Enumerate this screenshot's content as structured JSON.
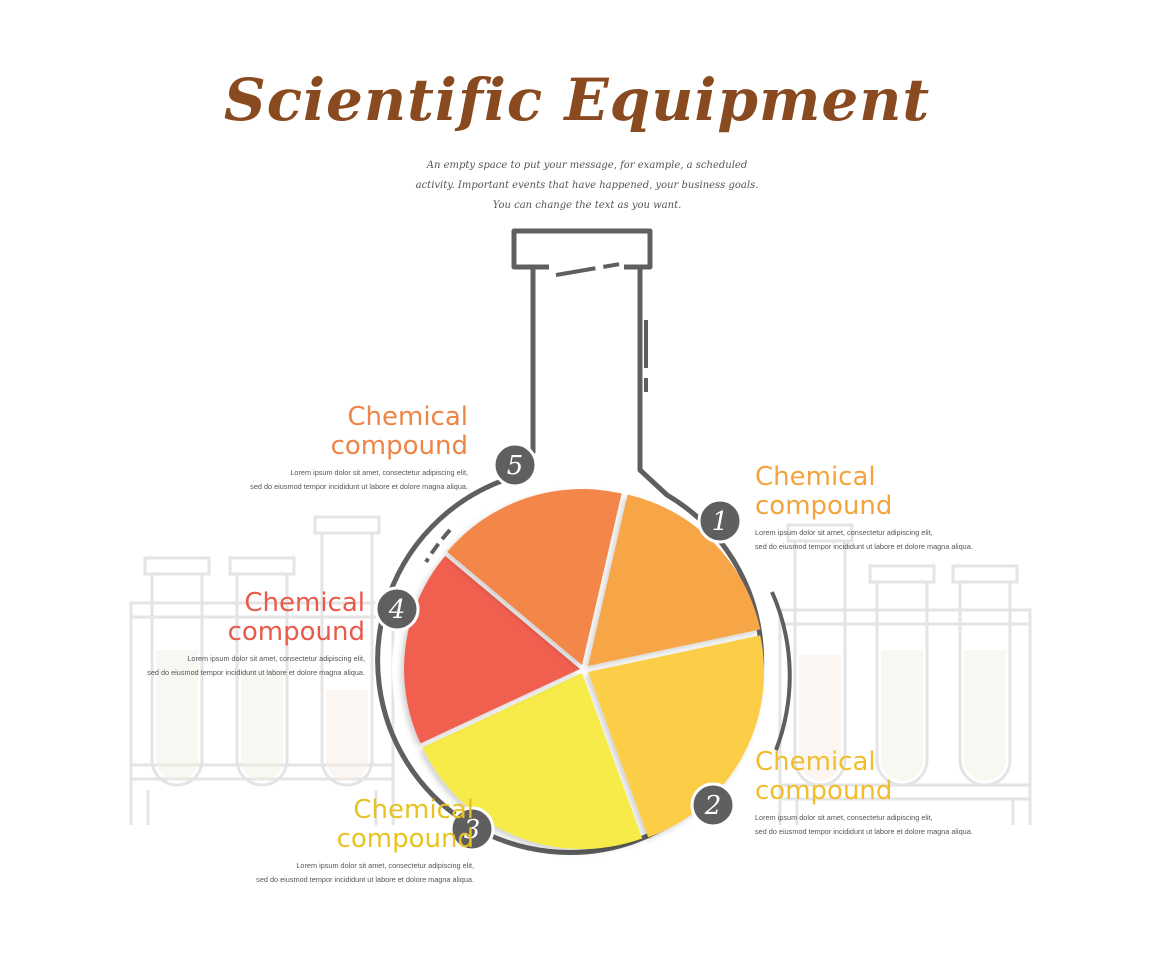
{
  "title": "Scientific Equipment",
  "subtitle": "An empty space to put your message, for example, a scheduled activity. Important events that have happened, your business goals. You can change the text as you want.",
  "colors": {
    "outline": "#5f5f5f",
    "tube_outline": "#e4e4e4",
    "title": "#8a4a1f",
    "body_text": "#555555"
  },
  "segments": [
    {
      "number": "1",
      "heading": "Chemical compound",
      "body": "Lorem ipsum dolor sit amet, consectetur adipiscing elit,\nsed do eiusmod tempor incididunt ut labore et dolore magna aliqua.",
      "color": "#f7a647",
      "text_color": "#f3a43c"
    },
    {
      "number": "2",
      "heading": "Chemical compound",
      "body": "Lorem ipsum dolor sit amet, consectetur adipiscing elit,\nsed do eiusmod tempor incididunt ut labore et dolore magna aliqua.",
      "color": "#fccd47",
      "text_color": "#f2bd2c"
    },
    {
      "number": "3",
      "heading": "Chemical compound",
      "body": "Lorem ipsum dolor sit amet, consectetur adipiscing elit,\nsed do eiusmod tempor incididunt ut labore et dolore magna aliqua.",
      "color": "#f7eb48",
      "text_color": "#e6c323"
    },
    {
      "number": "4",
      "heading": "Chemical compound",
      "body": "Lorem ipsum dolor sit amet, consectetur adipiscing elit,\nsed do eiusmod tempor incididunt ut labore et dolore magna aliqua.",
      "color": "#f15e50",
      "text_color": "#ea5a4a"
    },
    {
      "number": "5",
      "heading": "Chemical compound",
      "body": "Lorem ipsum dolor sit amet, consectetur adipiscing elit,\nsed do eiusmod tempor incididunt ut labore et dolore magna aliqua.",
      "color": "#f3864a",
      "text_color": "#ee8448"
    }
  ]
}
